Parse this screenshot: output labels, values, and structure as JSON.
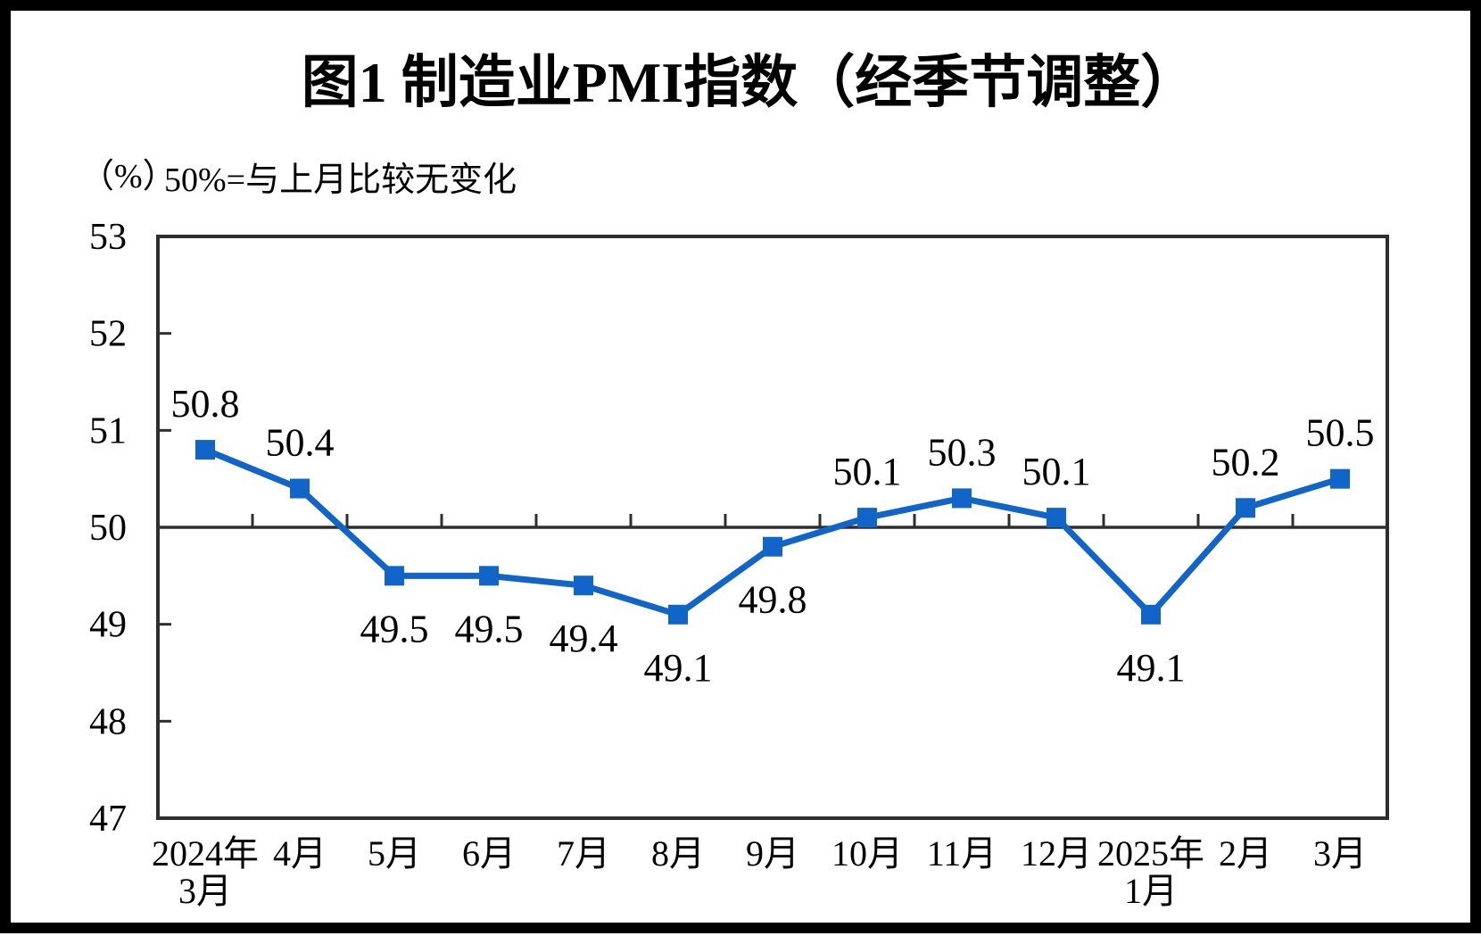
{
  "title": "图1  制造业PMI指数（经季节调整）",
  "unit_label": "（%）",
  "subtitle": "50%=与上月比较无变化",
  "chart_data": {
    "type": "line",
    "title": "图1  制造业PMI指数（经季节调整）",
    "ylabel": "（%）",
    "annotation": "50%=与上月比较无变化",
    "categories": [
      [
        "2024年",
        "3月"
      ],
      [
        "4月"
      ],
      [
        "5月"
      ],
      [
        "6月"
      ],
      [
        "7月"
      ],
      [
        "8月"
      ],
      [
        "9月"
      ],
      [
        "10月"
      ],
      [
        "11月"
      ],
      [
        "12月"
      ],
      [
        "2025年",
        "1月"
      ],
      [
        "2月"
      ],
      [
        "3月"
      ]
    ],
    "series": [
      {
        "name": "制造业PMI",
        "values": [
          50.8,
          50.4,
          49.5,
          49.5,
          49.4,
          49.1,
          49.8,
          50.1,
          50.3,
          50.1,
          49.1,
          50.2,
          50.5
        ]
      }
    ],
    "data_label_positions": [
      "above",
      "above",
      "below",
      "below",
      "below",
      "below",
      "below",
      "above",
      "above",
      "above",
      "below",
      "above",
      "above"
    ],
    "ylim": [
      47,
      53
    ],
    "yticks": [
      53,
      52,
      51,
      50,
      49,
      48,
      47
    ],
    "ytick_step": 1,
    "reference_line": 50,
    "grid": false,
    "legend": "none",
    "marker": "square",
    "line_color": "#1164C8",
    "axis_color": "#2E2E2E",
    "text_color": "#000000",
    "background_color": "#FFFFFF"
  }
}
